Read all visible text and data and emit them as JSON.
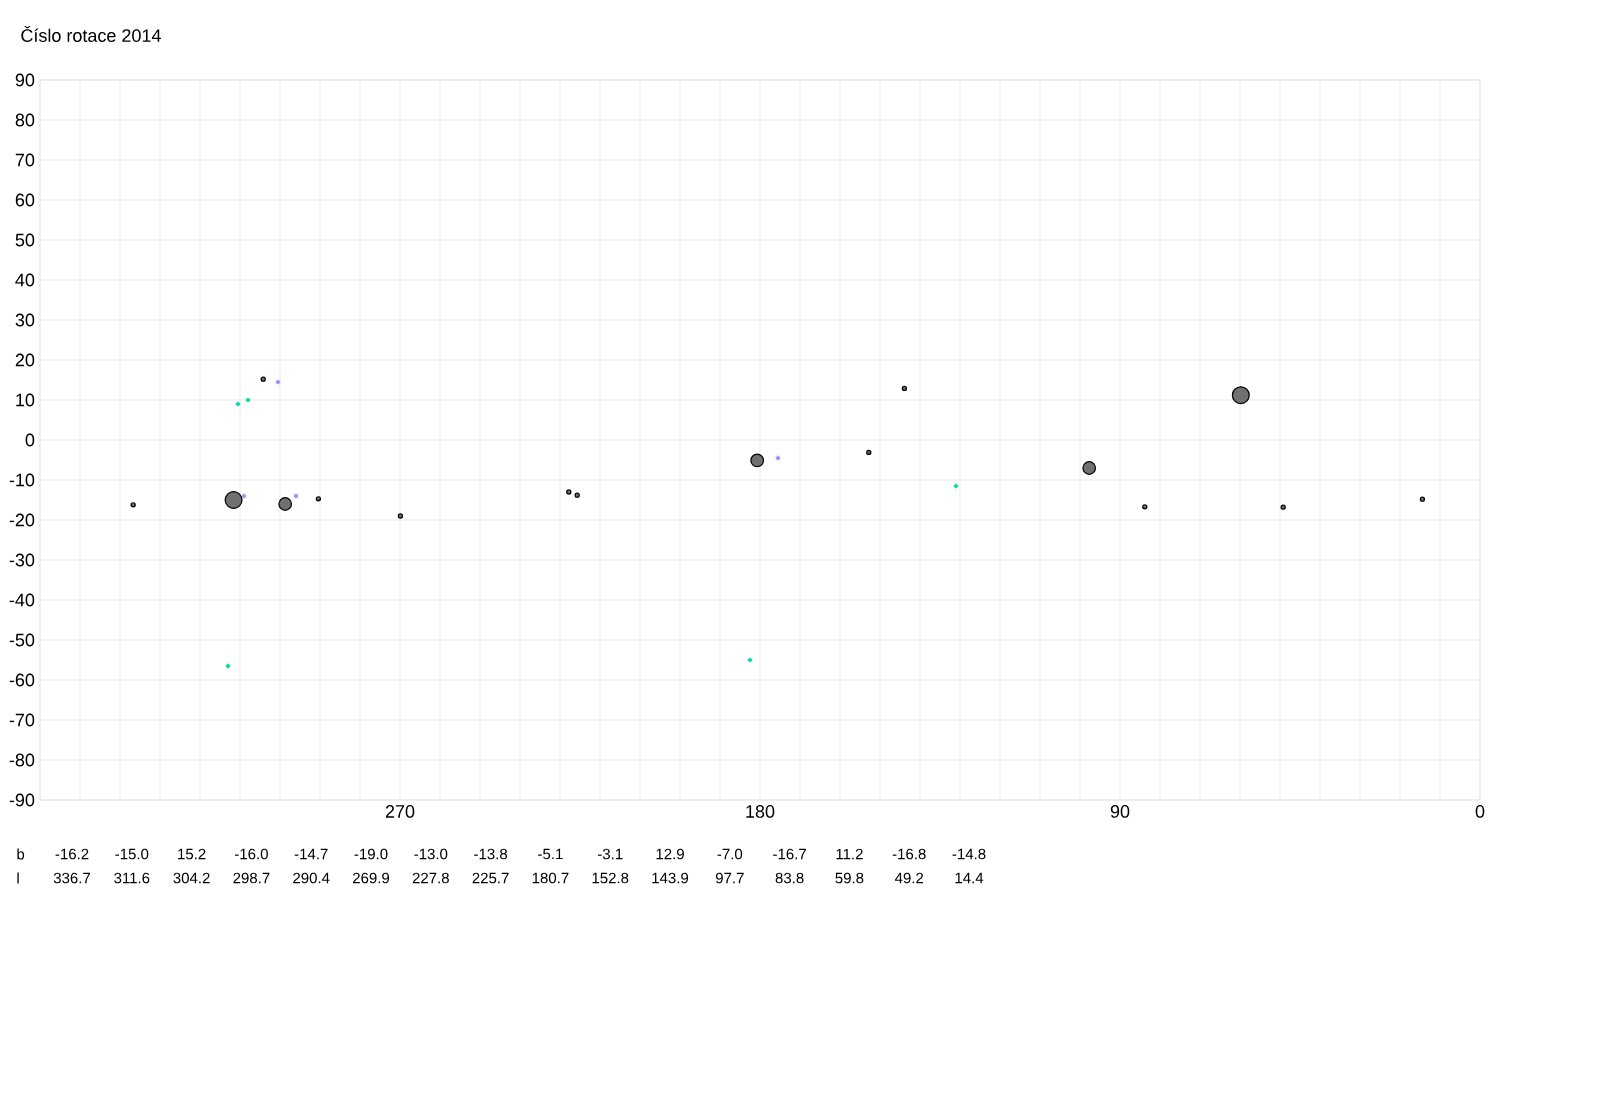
{
  "chart_data": {
    "type": "bubble",
    "title": "Číslo rotace  2014",
    "xlim": [
      360,
      0
    ],
    "xticks": [
      {
        "value": 360,
        "label": null
      },
      {
        "value": 350,
        "label": null
      },
      {
        "value": 340,
        "label": null
      },
      {
        "value": 330,
        "label": null
      },
      {
        "value": 320,
        "label": null
      },
      {
        "value": 310,
        "label": null
      },
      {
        "value": 300,
        "label": null
      },
      {
        "value": 290,
        "label": null
      },
      {
        "value": 280,
        "label": null
      },
      270,
      {
        "value": 260,
        "label": null
      },
      {
        "value": 250,
        "label": null
      },
      {
        "value": 240,
        "label": null
      },
      {
        "value": 230,
        "label": null
      },
      {
        "value": 220,
        "label": null
      },
      {
        "value": 210,
        "label": null
      },
      {
        "value": 200,
        "label": null
      },
      {
        "value": 190,
        "label": null
      },
      180,
      {
        "value": 170,
        "label": null
      },
      {
        "value": 160,
        "label": null
      },
      {
        "value": 150,
        "label": null
      },
      {
        "value": 140,
        "label": null
      },
      {
        "value": 130,
        "label": null
      },
      {
        "value": 120,
        "label": null
      },
      {
        "value": 110,
        "label": null
      },
      {
        "value": 100,
        "label": null
      },
      90,
      {
        "value": 80,
        "label": null
      },
      {
        "value": 70,
        "label": null
      },
      {
        "value": 60,
        "label": null
      },
      {
        "value": 50,
        "label": null
      },
      {
        "value": 40,
        "label": null
      },
      {
        "value": 30,
        "label": null
      },
      {
        "value": 20,
        "label": null
      },
      {
        "value": 10,
        "label": null
      },
      0
    ],
    "ylim": [
      -90,
      90
    ],
    "yticks": [
      -90,
      -80,
      -70,
      -60,
      -50,
      -40,
      -30,
      -20,
      -10,
      0,
      10,
      20,
      30,
      40,
      50,
      60,
      70,
      80,
      90
    ],
    "grid": true,
    "annotations": [
      "b",
      "l",
      "-16.2",
      "-15.0",
      "15.2",
      "-16.0",
      "-14.7",
      "-19.0",
      "-13.0",
      "-13.8",
      "-5.1",
      "-3.1",
      "12.9",
      "-7.0",
      "-16.7",
      "11.2",
      "-16.8",
      "-14.8",
      "336.7",
      "311.6",
      "304.2",
      "298.7",
      "290.4",
      "269.9",
      "227.8",
      "225.7",
      "180.7",
      "152.8",
      "143.9",
      "97.7",
      "83.8",
      "59.8",
      "49.2",
      "14.4"
    ],
    "series": [
      {
        "color": "#707070",
        "x": [
          336.7,
          311.6,
          304.2,
          298.7,
          290.4,
          269.9,
          227.8,
          225.7,
          180.7,
          152.8,
          143.9,
          97.7,
          83.8,
          59.8,
          49.2,
          14.4
        ],
        "values": [
          -16.2,
          -15.0,
          15.2,
          -16.0,
          -14.7,
          -19.0,
          -13.0,
          -13.8,
          -5.1,
          -3.1,
          12.9,
          -7.0,
          -16.7,
          11.2,
          -16.8,
          -14.8
        ],
        "sizes": [
          0.06,
          1,
          0.06,
          0.56,
          0.06,
          0.06,
          0.06,
          0.06,
          0.56,
          0.06,
          0.06,
          0.56,
          0.06,
          1,
          0.06,
          0.06
        ]
      },
      {
        "type": "scatter",
        "color": "#00d8a0",
        "x": [
          313,
          310.5,
          308,
          182.5,
          131
        ],
        "values": [
          -56.5,
          9,
          10,
          -55,
          -11.5
        ]
      },
      {
        "type": "scatter",
        "color": "#9090ff",
        "x": [
          309,
          300.5,
          296,
          175.5
        ],
        "values": [
          -14,
          14.5,
          -14,
          -4.5
        ]
      }
    ]
  }
}
